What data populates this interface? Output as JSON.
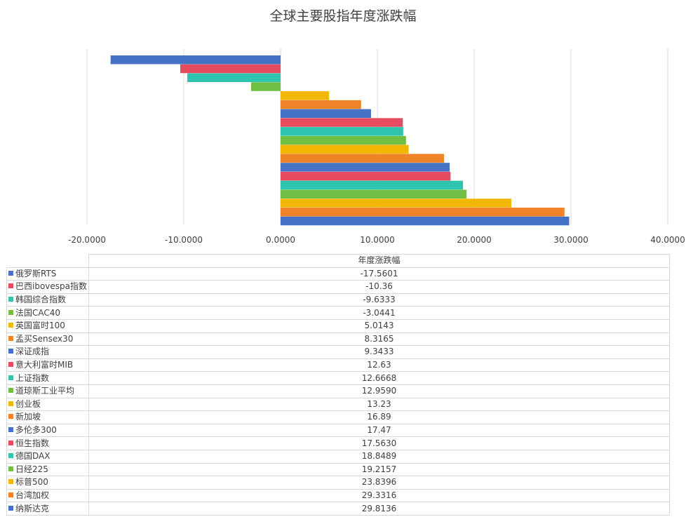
{
  "chart_data": {
    "type": "bar",
    "orientation": "horizontal",
    "title": "全球主要股指年度涨跌幅",
    "series_name": "年度涨跌幅",
    "xlim": [
      -20,
      40
    ],
    "x_ticks": [
      "-20.0000",
      "-10.0000",
      "0.0000",
      "10.0000",
      "20.0000",
      "30.0000",
      "40.0000"
    ],
    "grid": true,
    "legend": "data-table-below",
    "categories": [
      "俄罗斯RTS",
      "巴西ibovespa指数",
      "韩国综合指数",
      "法国CAC40",
      "英国富时100",
      "孟买Sensex30",
      "深证成指",
      "意大利富时MIB",
      "上证指数",
      "道琼斯工业平均",
      "创业板",
      "新加坡",
      "多伦多300",
      "恒生指数",
      "德国DAX",
      "日经225",
      "标普500",
      "台湾加权",
      "纳斯达克"
    ],
    "values": [
      -17.5601,
      -10.36,
      -9.6333,
      -3.0441,
      5.0143,
      8.3165,
      9.3433,
      12.63,
      12.6668,
      12.959,
      13.23,
      16.89,
      17.47,
      17.563,
      18.8489,
      19.2157,
      23.8396,
      29.3316,
      29.8136
    ],
    "value_labels": [
      "-17.5601",
      "-10.36",
      "-9.6333",
      "-3.0441",
      "5.0143",
      "8.3165",
      "9.3433",
      "12.63",
      "12.6668",
      "12.9590",
      "13.23",
      "16.89",
      "17.47",
      "17.5630",
      "18.8489",
      "19.2157",
      "23.8396",
      "29.3316",
      "29.8136"
    ],
    "colors": [
      "#4472c4",
      "#e64b5f",
      "#2ec4b0",
      "#70bf44",
      "#f2b705",
      "#f08228"
    ]
  }
}
